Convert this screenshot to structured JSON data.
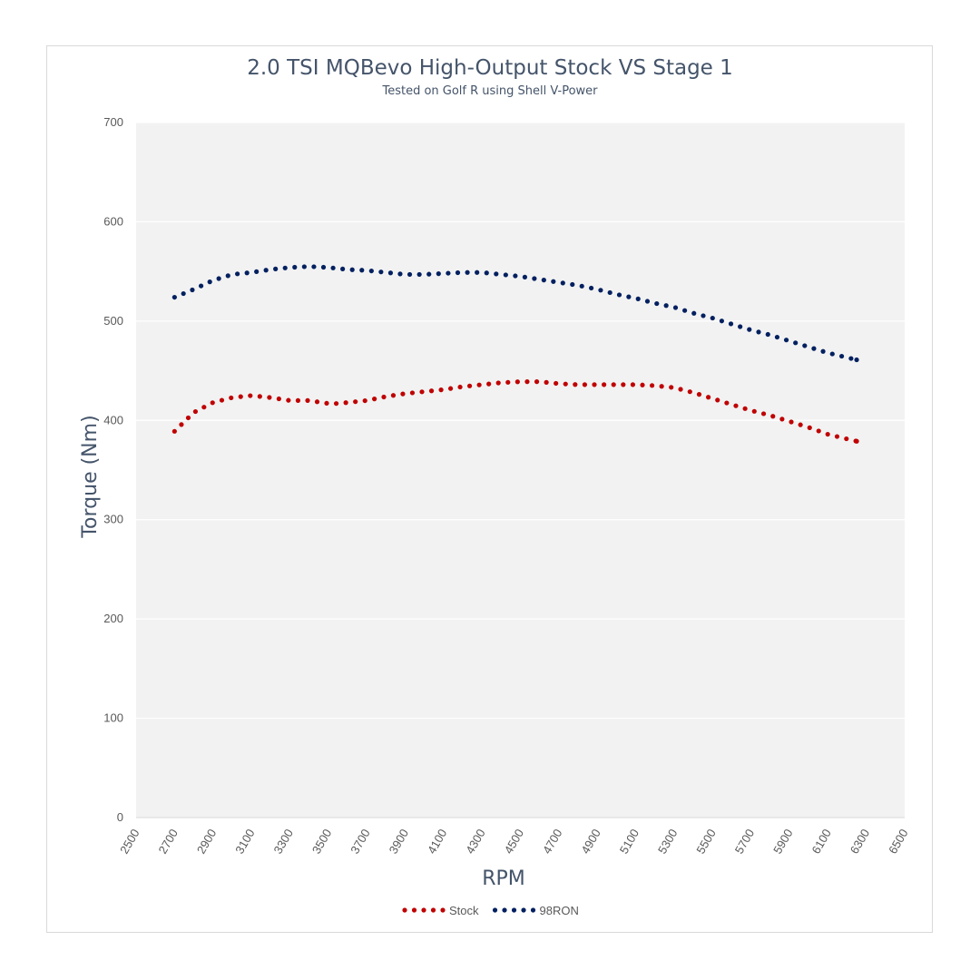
{
  "chart_data": {
    "type": "scatter",
    "title": "2.0 TSI MQBevo High-Output Stock VS Stage 1",
    "subtitle": "Tested on Golf R using Shell V-Power",
    "xlabel": "RPM",
    "ylabel": "Torque (Nm)",
    "xlim": [
      2500,
      6500
    ],
    "ylim": [
      0,
      700
    ],
    "x_ticks": [
      2500,
      2700,
      2900,
      3100,
      3300,
      3500,
      3700,
      3900,
      4100,
      4300,
      4500,
      4700,
      4900,
      5100,
      5300,
      5500,
      5700,
      5900,
      6100,
      6300,
      6500
    ],
    "y_ticks": [
      0,
      100,
      200,
      300,
      400,
      500,
      600,
      700
    ],
    "grid": true,
    "legend_position": "bottom",
    "series": [
      {
        "name": "Stock",
        "color": "#c00000",
        "marker": "dotted",
        "points": [
          [
            2700,
            389
          ],
          [
            2800,
            408
          ],
          [
            2900,
            418
          ],
          [
            3000,
            423
          ],
          [
            3100,
            425
          ],
          [
            3200,
            423
          ],
          [
            3300,
            420
          ],
          [
            3400,
            420
          ],
          [
            3500,
            417
          ],
          [
            3550,
            417
          ],
          [
            3700,
            420
          ],
          [
            3800,
            424
          ],
          [
            3900,
            427
          ],
          [
            4000,
            429
          ],
          [
            4100,
            431
          ],
          [
            4200,
            434
          ],
          [
            4300,
            436
          ],
          [
            4400,
            438
          ],
          [
            4500,
            439
          ],
          [
            4600,
            439
          ],
          [
            4700,
            437
          ],
          [
            4800,
            436
          ],
          [
            4900,
            436
          ],
          [
            5000,
            436
          ],
          [
            5100,
            436
          ],
          [
            5200,
            435
          ],
          [
            5300,
            433
          ],
          [
            5400,
            428
          ],
          [
            5500,
            422
          ],
          [
            5600,
            416
          ],
          [
            5700,
            410
          ],
          [
            5800,
            405
          ],
          [
            5900,
            399
          ],
          [
            6000,
            393
          ],
          [
            6100,
            386
          ],
          [
            6250,
            379
          ]
        ]
      },
      {
        "name": "98RON",
        "color": "#002060",
        "marker": "dotted",
        "points": [
          [
            2700,
            524
          ],
          [
            2800,
            532
          ],
          [
            2900,
            541
          ],
          [
            3000,
            547
          ],
          [
            3100,
            549
          ],
          [
            3200,
            552
          ],
          [
            3300,
            554
          ],
          [
            3400,
            555
          ],
          [
            3500,
            554
          ],
          [
            3600,
            552
          ],
          [
            3700,
            551
          ],
          [
            3800,
            549
          ],
          [
            3900,
            547
          ],
          [
            4000,
            547
          ],
          [
            4100,
            548
          ],
          [
            4200,
            549
          ],
          [
            4300,
            549
          ],
          [
            4400,
            547
          ],
          [
            4500,
            545
          ],
          [
            4600,
            542
          ],
          [
            4700,
            539
          ],
          [
            4800,
            536
          ],
          [
            4900,
            532
          ],
          [
            5000,
            527
          ],
          [
            5100,
            523
          ],
          [
            5200,
            518
          ],
          [
            5300,
            514
          ],
          [
            5400,
            508
          ],
          [
            5500,
            503
          ],
          [
            5600,
            497
          ],
          [
            5700,
            491
          ],
          [
            5800,
            486
          ],
          [
            5900,
            480
          ],
          [
            6000,
            474
          ],
          [
            6100,
            468
          ],
          [
            6250,
            461
          ]
        ]
      }
    ]
  }
}
